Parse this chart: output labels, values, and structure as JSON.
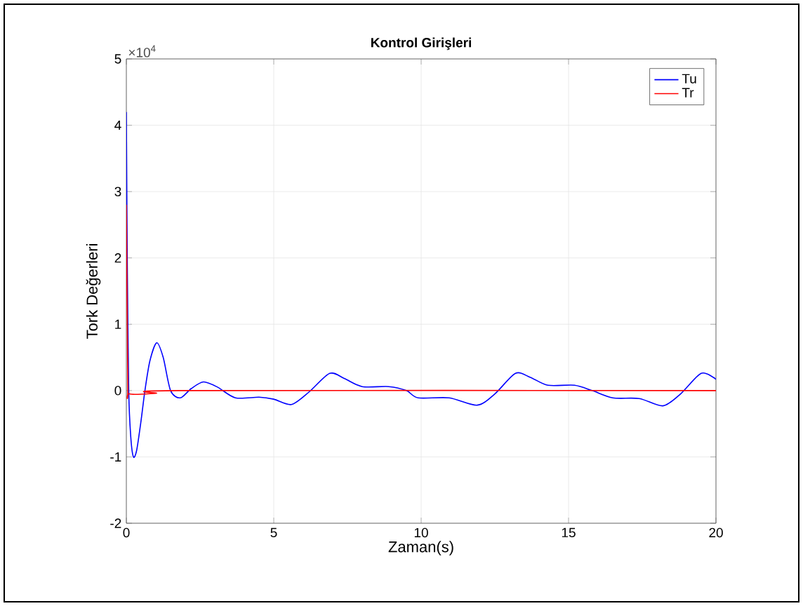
{
  "chart_data": {
    "type": "line",
    "title": "Kontrol Girişleri",
    "xlabel": "Zaman(s)",
    "ylabel": "Tork Değerleri",
    "annotations": [
      "×10$^{4}$"
    ],
    "series": [
      {
        "name": "Tu",
        "color": "#0000ff",
        "x": [
          0,
          0.03,
          0.08,
          0.15,
          0.24,
          0.35,
          0.5,
          0.63,
          0.8,
          1.03,
          1.25,
          1.5,
          1.83,
          2.2,
          2.62,
          3.1,
          3.7,
          4.5,
          5.0,
          5.6,
          6.2,
          6.9,
          7.4,
          8.0,
          8.9,
          9.5,
          9.9,
          10.95,
          11.9,
          12.5,
          13.2,
          13.7,
          14.3,
          15.2,
          15.8,
          16.5,
          17.4,
          18.2,
          18.8,
          19.5,
          20
        ],
        "values": [
          4.2,
          2.0,
          0.0,
          -0.7,
          -1.0,
          -0.9,
          -0.45,
          0.0,
          0.45,
          0.72,
          0.5,
          0.0,
          -0.11,
          0.03,
          0.13,
          0.05,
          -0.11,
          -0.1,
          -0.13,
          -0.21,
          -0.02,
          0.26,
          0.18,
          0.06,
          0.06,
          0.0,
          -0.11,
          -0.11,
          -0.22,
          -0.05,
          0.26,
          0.2,
          0.08,
          0.08,
          0.0,
          -0.11,
          -0.12,
          -0.23,
          -0.05,
          0.26,
          0.17
        ]
      },
      {
        "name": "Tr",
        "color": "#ff0000",
        "x": [
          0,
          0.05,
          0.1,
          1.0,
          2.0,
          20
        ],
        "values": [
          2.8,
          0.1,
          -0.05,
          -0.04,
          0.0,
          0.0
        ]
      }
    ],
    "xlim": [
      0,
      20
    ],
    "ylim": [
      -2,
      5
    ],
    "xticks": [
      0,
      5,
      10,
      15,
      20
    ],
    "yticks": [
      -2,
      -1,
      0,
      1,
      2,
      3,
      4,
      5
    ],
    "grid": true,
    "legend": "top right",
    "marker": "none",
    "line_style": "solid"
  }
}
